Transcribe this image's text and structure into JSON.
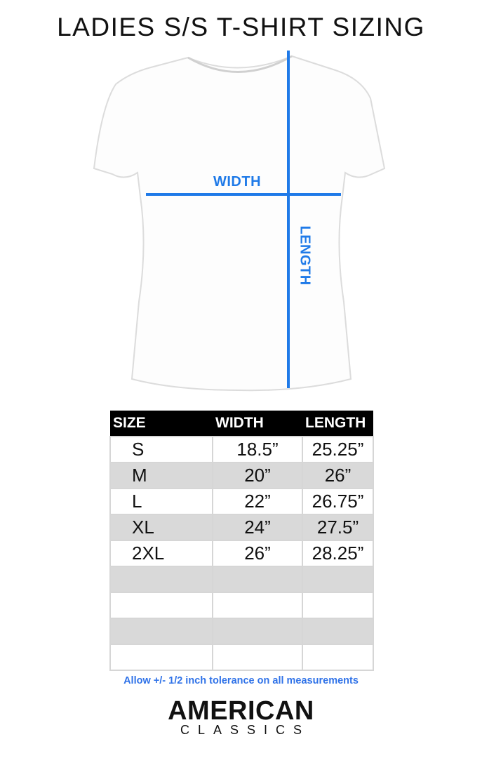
{
  "title": "LADIES S/S T-SHIRT SIZING",
  "diagram": {
    "width_label": "WIDTH",
    "length_label": "LENGTH",
    "line_color": "#1f7ae8"
  },
  "table": {
    "headers": [
      "SIZE",
      "WIDTH",
      "LENGTH"
    ],
    "rows": [
      [
        "S",
        "18.5”",
        "25.25”"
      ],
      [
        "M",
        "20”",
        "26”"
      ],
      [
        "L",
        "22”",
        "26.75”"
      ],
      [
        "XL",
        "24”",
        "27.5”"
      ],
      [
        "2XL",
        "26”",
        "28.25”"
      ],
      [
        "",
        "",
        ""
      ],
      [
        "",
        "",
        ""
      ],
      [
        "",
        "",
        ""
      ],
      [
        "",
        "",
        ""
      ]
    ]
  },
  "note": "Allow +/- 1/2 inch tolerance on all measurements",
  "brand": {
    "line1": "AMERICAN",
    "line2": "CLASSICS"
  }
}
